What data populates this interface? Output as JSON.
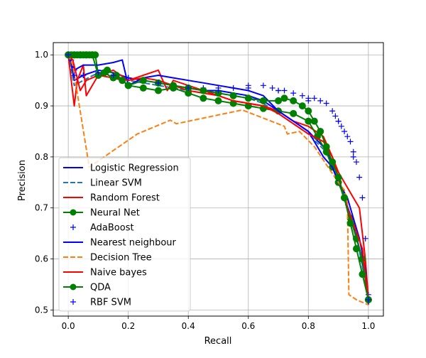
{
  "chart_data": {
    "type": "line",
    "xlabel": "Recall",
    "ylabel": "Precision",
    "xlim": [
      -0.05,
      1.05
    ],
    "ylim": [
      0.488,
      1.024
    ],
    "xticks": [
      0.0,
      0.2,
      0.4,
      0.6,
      0.8,
      1.0
    ],
    "xtick_labels": [
      "0.0",
      "0.2",
      "0.4",
      "0.6",
      "0.8",
      "1.0"
    ],
    "yticks": [
      0.5,
      0.6,
      0.7,
      0.8,
      0.9,
      1.0
    ],
    "ytick_labels": [
      "0.5",
      "0.6",
      "0.7",
      "0.8",
      "0.9",
      "1.0"
    ],
    "grid": true,
    "legend_position": "lower-left",
    "series": [
      {
        "name": "Logistic Regression",
        "color": "#0000ff",
        "dash": "solid",
        "marker": "none",
        "x": [
          0.0,
          0.01,
          0.02,
          0.05,
          0.1,
          0.15,
          0.2,
          0.25,
          0.3,
          0.35,
          0.4,
          0.45,
          0.5,
          0.55,
          0.6,
          0.65,
          0.7,
          0.75,
          0.8,
          0.85,
          0.88,
          0.9,
          0.92,
          0.95,
          0.97,
          0.99,
          1.0
        ],
        "y": [
          1.0,
          0.98,
          0.95,
          0.96,
          0.97,
          0.965,
          0.955,
          0.95,
          0.945,
          0.94,
          0.935,
          0.93,
          0.93,
          0.925,
          0.92,
          0.91,
          0.89,
          0.87,
          0.85,
          0.82,
          0.79,
          0.76,
          0.72,
          0.67,
          0.62,
          0.56,
          0.52
        ]
      },
      {
        "name": "Linear SVM",
        "color": "#1f77b4",
        "dash": "dashed",
        "marker": "none",
        "x": [
          0.0,
          0.01,
          0.02,
          0.05,
          0.1,
          0.15,
          0.2,
          0.25,
          0.3,
          0.35,
          0.4,
          0.45,
          0.5,
          0.55,
          0.6,
          0.65,
          0.7,
          0.75,
          0.8,
          0.85,
          0.88,
          0.9,
          0.92,
          0.95,
          0.97,
          0.99,
          1.0
        ],
        "y": [
          1.0,
          0.97,
          0.94,
          0.95,
          0.965,
          0.96,
          0.95,
          0.945,
          0.94,
          0.935,
          0.93,
          0.925,
          0.925,
          0.92,
          0.915,
          0.905,
          0.885,
          0.865,
          0.845,
          0.815,
          0.785,
          0.755,
          0.715,
          0.665,
          0.615,
          0.555,
          0.515
        ]
      },
      {
        "name": "Random Forest",
        "color": "#ff0000",
        "dash": "solid",
        "marker": "none",
        "x": [
          0.0,
          0.02,
          0.03,
          0.05,
          0.06,
          0.08,
          0.1,
          0.15,
          0.2,
          0.25,
          0.3,
          0.33,
          0.35,
          0.4,
          0.45,
          0.5,
          0.55,
          0.6,
          0.65,
          0.7,
          0.75,
          0.8,
          0.85,
          0.88,
          0.9,
          0.93,
          0.95,
          0.97,
          0.99,
          1.0
        ],
        "y": [
          1.0,
          0.9,
          0.95,
          0.98,
          0.92,
          0.94,
          0.96,
          0.97,
          0.95,
          0.96,
          0.97,
          0.93,
          0.95,
          0.94,
          0.93,
          0.92,
          0.91,
          0.905,
          0.9,
          0.89,
          0.87,
          0.86,
          0.84,
          0.8,
          0.77,
          0.74,
          0.72,
          0.7,
          0.6,
          0.52
        ]
      },
      {
        "name": "Neural Net",
        "color": "#008000",
        "dash": "solid",
        "marker": "circle",
        "x": [
          0.0,
          0.01,
          0.02,
          0.03,
          0.04,
          0.05,
          0.06,
          0.07,
          0.08,
          0.09,
          0.1,
          0.13,
          0.16,
          0.2,
          0.25,
          0.3,
          0.35,
          0.4,
          0.45,
          0.5,
          0.55,
          0.6,
          0.65,
          0.7,
          0.75,
          0.8,
          0.83,
          0.86,
          0.88,
          0.9,
          0.92,
          0.94,
          0.96,
          0.98,
          1.0
        ],
        "y": [
          1.0,
          1.0,
          1.0,
          1.0,
          1.0,
          1.0,
          1.0,
          1.0,
          1.0,
          1.0,
          0.96,
          0.97,
          0.96,
          0.94,
          0.935,
          0.93,
          0.935,
          0.925,
          0.915,
          0.91,
          0.905,
          0.9,
          0.895,
          0.89,
          0.885,
          0.87,
          0.84,
          0.81,
          0.78,
          0.75,
          0.72,
          0.68,
          0.64,
          0.6,
          0.52
        ]
      },
      {
        "name": "AdaBoost",
        "color": "#0000ff",
        "dash": "none",
        "marker": "plus",
        "x": [
          0.0,
          0.01,
          0.02,
          0.05,
          0.1,
          0.15,
          0.2,
          0.25,
          0.3,
          0.35,
          0.4,
          0.45,
          0.5,
          0.55,
          0.6,
          0.65,
          0.68,
          0.7,
          0.72,
          0.75,
          0.78,
          0.8,
          0.82,
          0.84,
          0.86,
          0.88,
          0.89,
          0.9,
          0.91,
          0.92,
          0.93,
          0.94,
          0.95,
          0.96,
          0.97,
          0.98,
          0.99,
          1.0
        ],
        "y": [
          1.0,
          0.99,
          0.97,
          0.96,
          0.965,
          0.96,
          0.955,
          0.95,
          0.945,
          0.94,
          0.935,
          0.935,
          0.935,
          0.935,
          0.94,
          0.94,
          0.935,
          0.93,
          0.93,
          0.925,
          0.92,
          0.915,
          0.915,
          0.91,
          0.905,
          0.89,
          0.88,
          0.87,
          0.86,
          0.85,
          0.84,
          0.83,
          0.81,
          0.79,
          0.76,
          0.72,
          0.64,
          0.53
        ]
      },
      {
        "name": "Nearest neighbour",
        "color": "#0000ff",
        "dash": "solid",
        "marker": "none",
        "x": [
          0.0,
          0.02,
          0.05,
          0.1,
          0.15,
          0.18,
          0.2,
          0.25,
          0.3,
          0.35,
          0.4,
          0.45,
          0.5,
          0.55,
          0.6,
          0.65,
          0.7,
          0.75,
          0.8,
          0.85,
          0.88,
          0.9,
          0.93,
          0.95,
          0.97,
          0.99,
          1.0
        ],
        "y": [
          1.0,
          0.97,
          0.98,
          0.98,
          0.985,
          0.99,
          0.94,
          0.955,
          0.96,
          0.955,
          0.95,
          0.945,
          0.94,
          0.935,
          0.93,
          0.92,
          0.89,
          0.87,
          0.85,
          0.8,
          0.78,
          0.75,
          0.72,
          0.68,
          0.64,
          0.58,
          0.51
        ]
      },
      {
        "name": "Decision Tree",
        "color": "#ff7f0e",
        "dash": "dashed",
        "marker": "none",
        "x": [
          0.0,
          0.015,
          0.07,
          0.23,
          0.34,
          0.36,
          0.58,
          0.72,
          0.73,
          0.77,
          0.82,
          0.9,
          0.92,
          0.93,
          0.935,
          0.96,
          1.0
        ],
        "y": [
          1.0,
          0.98,
          0.78,
          0.845,
          0.872,
          0.865,
          0.892,
          0.86,
          0.845,
          0.85,
          0.82,
          0.75,
          0.735,
          0.71,
          0.53,
          0.52,
          0.51
        ]
      },
      {
        "name": "Naive bayes",
        "color": "#ff0000",
        "dash": "solid",
        "marker": "none",
        "x": [
          0.0,
          0.015,
          0.04,
          0.06,
          0.1,
          0.15,
          0.2,
          0.25,
          0.3,
          0.35,
          0.4,
          0.45,
          0.5,
          0.55,
          0.6,
          0.65,
          0.7,
          0.75,
          0.8,
          0.85,
          0.88,
          0.9,
          0.93,
          0.95,
          0.98,
          1.0
        ],
        "y": [
          1.0,
          0.99,
          0.93,
          0.95,
          0.96,
          0.955,
          0.95,
          0.955,
          0.95,
          0.94,
          0.93,
          0.925,
          0.92,
          0.91,
          0.905,
          0.9,
          0.885,
          0.865,
          0.845,
          0.83,
          0.8,
          0.76,
          0.7,
          0.67,
          0.62,
          0.52
        ]
      },
      {
        "name": "QDA",
        "color": "#008000",
        "dash": "solid",
        "marker": "circle",
        "x": [
          0.0,
          0.02,
          0.04,
          0.06,
          0.08,
          0.1,
          0.12,
          0.15,
          0.18,
          0.2,
          0.25,
          0.3,
          0.35,
          0.4,
          0.45,
          0.5,
          0.55,
          0.6,
          0.65,
          0.7,
          0.72,
          0.75,
          0.78,
          0.8,
          0.82,
          0.84,
          0.86,
          0.88,
          0.9,
          0.92,
          0.94,
          0.96,
          0.98,
          1.0
        ],
        "y": [
          1.0,
          1.0,
          1.0,
          1.0,
          1.0,
          0.96,
          0.965,
          0.955,
          0.95,
          0.94,
          0.95,
          0.945,
          0.94,
          0.935,
          0.93,
          0.925,
          0.92,
          0.915,
          0.91,
          0.91,
          0.915,
          0.91,
          0.9,
          0.89,
          0.87,
          0.85,
          0.82,
          0.79,
          0.76,
          0.72,
          0.67,
          0.62,
          0.57,
          0.52
        ]
      },
      {
        "name": "RBF SVM",
        "color": "#0000ff",
        "dash": "none",
        "marker": "plus",
        "x": [
          0.0,
          0.02,
          0.05,
          0.1,
          0.15,
          0.2,
          0.3,
          0.4,
          0.5,
          0.6,
          0.7,
          0.8,
          0.9,
          0.95,
          1.0
        ],
        "y": [
          1.0,
          0.96,
          0.96,
          0.965,
          0.96,
          0.955,
          0.945,
          0.935,
          0.93,
          0.935,
          0.93,
          0.91,
          0.87,
          0.8,
          0.52
        ]
      }
    ]
  }
}
